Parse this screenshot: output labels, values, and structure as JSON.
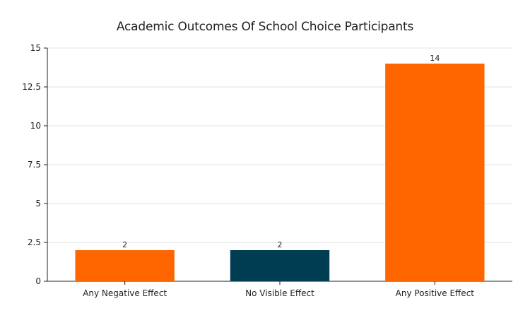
{
  "chart_data": {
    "type": "bar",
    "title": "Academic Outcomes Of School Choice Participants",
    "categories": [
      "Any Negative Effect",
      "No Visible Effect",
      "Any Positive Effect"
    ],
    "values": [
      2,
      2,
      14
    ],
    "data_labels": [
      "2",
      "2",
      "14"
    ],
    "bar_colors": [
      "#ff6600",
      "#003d52",
      "#ff6600"
    ],
    "ylim": [
      0,
      15
    ],
    "yticks": [
      0,
      2.5,
      5,
      7.5,
      10,
      12.5,
      15
    ],
    "ytick_labels": [
      "0",
      "2.5",
      "5",
      "7.5",
      "10",
      "12.5",
      "15"
    ],
    "xlabel": "",
    "ylabel": "",
    "grid": true,
    "legend": "none"
  }
}
